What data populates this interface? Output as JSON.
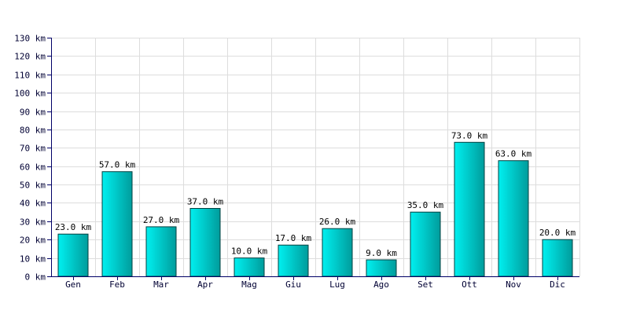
{
  "chart_data": {
    "type": "bar",
    "categories": [
      "Gen",
      "Feb",
      "Mar",
      "Apr",
      "Mag",
      "Giu",
      "Lug",
      "Ago",
      "Set",
      "Ott",
      "Nov",
      "Dic"
    ],
    "values": [
      23,
      57,
      27,
      37,
      10,
      17,
      26,
      9,
      35,
      73,
      63,
      20
    ],
    "data_labels": [
      "23.0 km",
      "57.0 km",
      "27.0 km",
      "37.0 km",
      "10.0 km",
      "17.0 km",
      "26.0 km",
      "9.0 km",
      "35.0 km",
      "73.0 km",
      "63.0 km",
      "20.0 km"
    ],
    "y_ticks": [
      0,
      10,
      20,
      30,
      40,
      50,
      60,
      70,
      80,
      90,
      100,
      110,
      120,
      130
    ],
    "y_tick_labels": [
      "0 km",
      "10 km",
      "20 km",
      "30 km",
      "40 km",
      "50 km",
      "60 km",
      "70 km",
      "80 km",
      "90 km",
      "100 km",
      "110 km",
      "120 km",
      "130 km"
    ],
    "ylim": [
      0,
      130
    ],
    "grid": true,
    "bar_color": "#00c8c8",
    "bar_gradient": [
      "#00f0f0",
      "#009c9c"
    ],
    "bar_edge_color": "#004040",
    "grid_color": "#dddddd",
    "axis_color": "#000066"
  }
}
